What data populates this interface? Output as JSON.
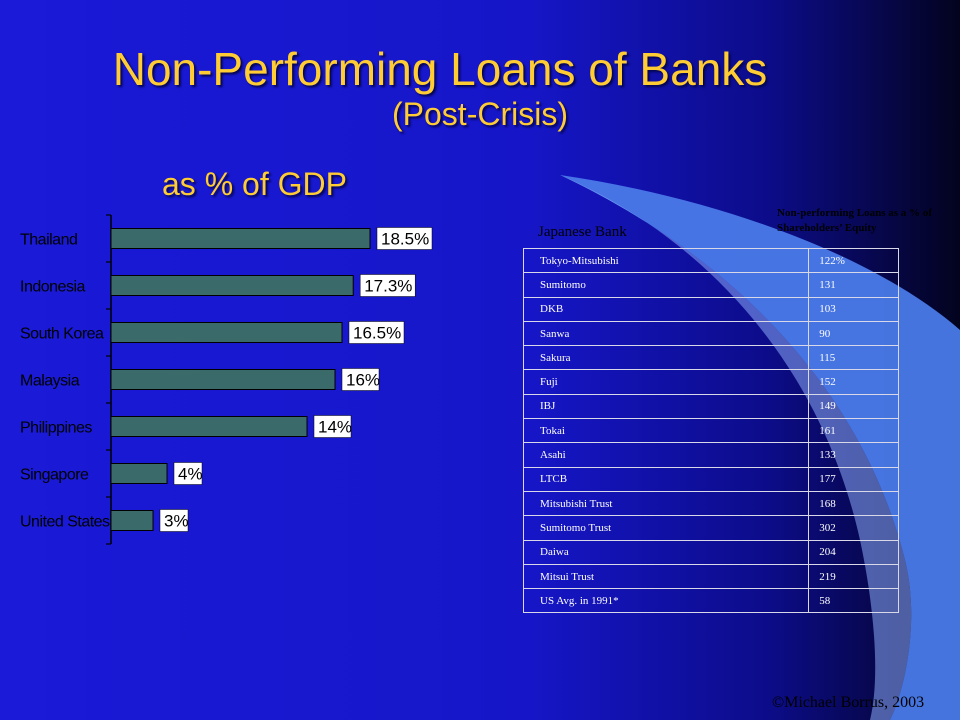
{
  "slide": {
    "title": "Non-Performing Loans of Banks",
    "subtitle": "(Post-Crisis)",
    "gdp_label": "as % of GDP",
    "credit": "©Michael Borrus, 2003",
    "colors": {
      "background": "#1a1ad8",
      "title": "#ffcc33",
      "bar": "#3a6a6a",
      "swoosh": "#4a7ae8"
    }
  },
  "chart_data": {
    "type": "bar",
    "orientation": "horizontal",
    "title": "as % of GDP",
    "categories": [
      "Thailand",
      "Indonesia",
      "South Korea",
      "Malaysia",
      "Philippines",
      "Singapore",
      "United States"
    ],
    "values": [
      18.5,
      17.3,
      16.5,
      16,
      14,
      4,
      3
    ],
    "value_labels": [
      "18.5%",
      "17.3%",
      "16.5%",
      "16%",
      "14%",
      "4%",
      "3%"
    ],
    "xlim": [
      0,
      20
    ],
    "grid": false,
    "legend": false
  },
  "table": {
    "header_left": "Japanese Bank",
    "header_right": "Non-performing Loans as a % of Shareholders’ Equity",
    "rows": [
      {
        "bank": "Tokyo-Mitsubishi",
        "value": "122%"
      },
      {
        "bank": "Sumitomo",
        "value": "131"
      },
      {
        "bank": "DKB",
        "value": "103"
      },
      {
        "bank": "Sanwa",
        "value": "90"
      },
      {
        "bank": "Sakura",
        "value": "115"
      },
      {
        "bank": "Fuji",
        "value": "152"
      },
      {
        "bank": "IBJ",
        "value": "149"
      },
      {
        "bank": "Tokai",
        "value": "161"
      },
      {
        "bank": "Asahi",
        "value": "133"
      },
      {
        "bank": "LTCB",
        "value": "177"
      },
      {
        "bank": "Mitsubishi Trust",
        "value": "168"
      },
      {
        "bank": "Sumitomo Trust",
        "value": "302"
      },
      {
        "bank": "Daiwa",
        "value": "204"
      },
      {
        "bank": "Mitsui Trust",
        "value": "219"
      },
      {
        "bank": "US Avg. in 1991*",
        "value": "58"
      }
    ]
  }
}
